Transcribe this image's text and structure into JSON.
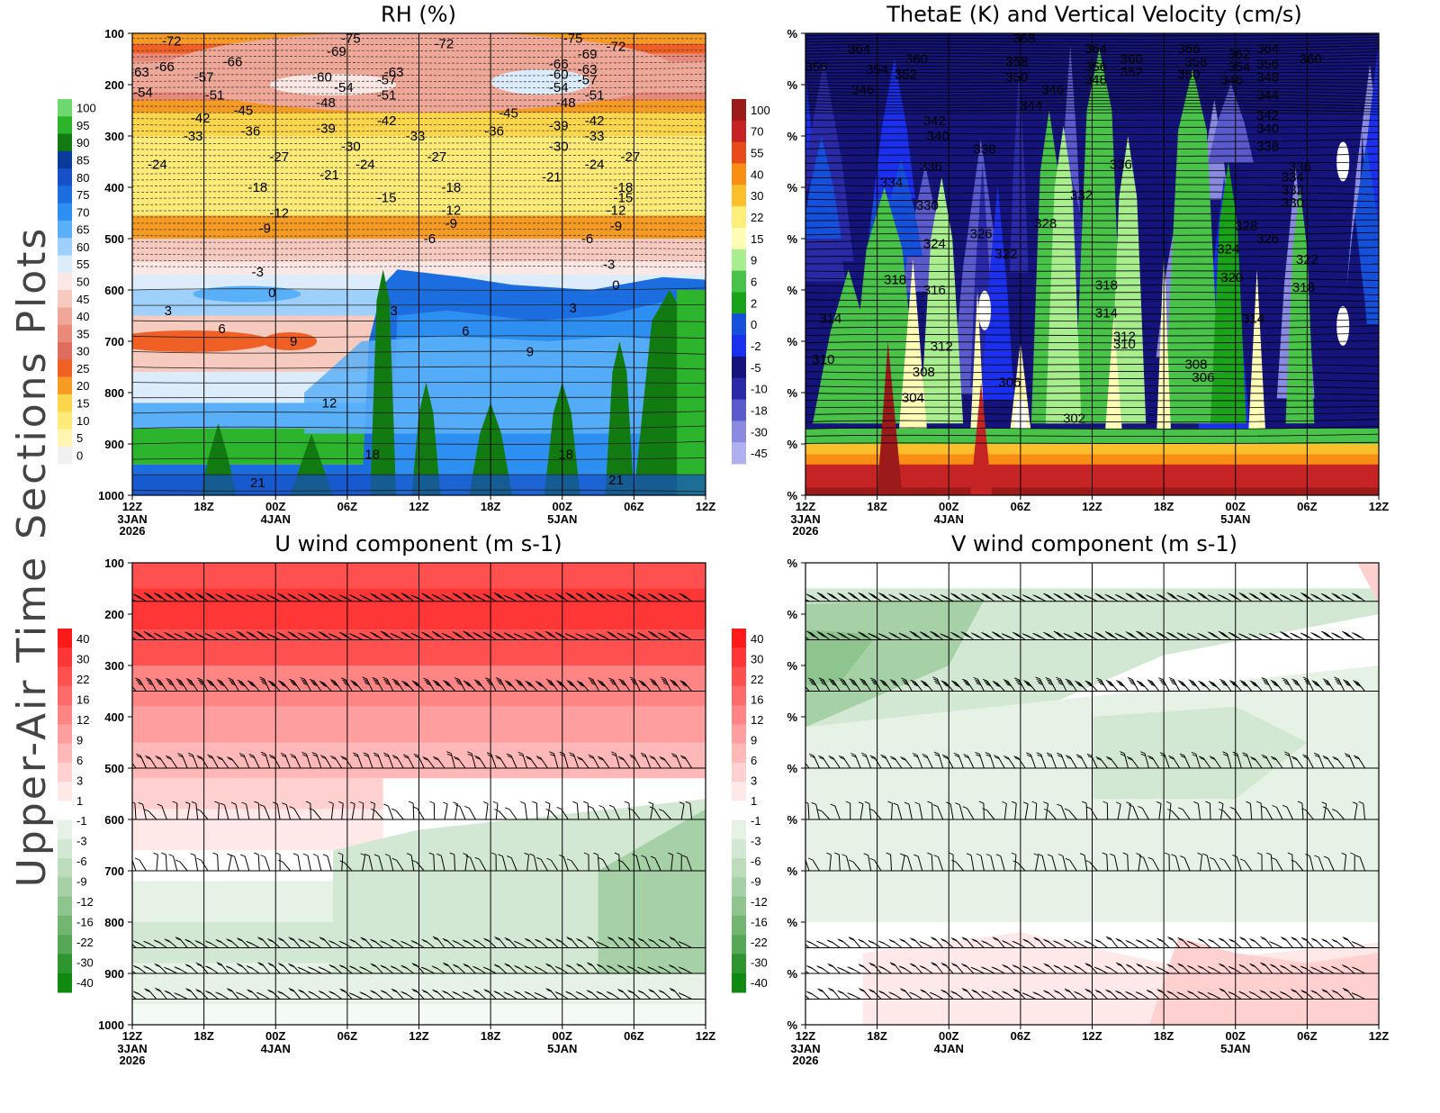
{
  "figure": {
    "side_title": "Upper-Air Time Sections Plots"
  },
  "time_axis": {
    "ticks": [
      "12Z",
      "18Z",
      "00Z",
      "06Z",
      "12Z",
      "18Z",
      "00Z",
      "06Z",
      "12Z"
    ],
    "sublabels": [
      {
        "tick": 0,
        "lines": [
          "3JAN",
          "2026"
        ]
      },
      {
        "tick": 2,
        "lines": [
          "4JAN"
        ]
      },
      {
        "tick": 6,
        "lines": [
          "5JAN"
        ]
      }
    ]
  },
  "colorbars": {
    "rh": {
      "labels": [
        "100",
        "95",
        "90",
        "85",
        "80",
        "75",
        "70",
        "65",
        "60",
        "55",
        "50",
        "45",
        "40",
        "35",
        "30",
        "25",
        "20",
        "15",
        "10",
        "5",
        "0"
      ],
      "colors": [
        "#6ed86e",
        "#2cb52c",
        "#117a11",
        "#0a3a9a",
        "#1550c8",
        "#1c6ee0",
        "#2e8ff2",
        "#5ab0f8",
        "#9ed0fb",
        "#dcecfb",
        "#fbe8e4",
        "#f6cabe",
        "#efa898",
        "#e8897a",
        "#df6d5e",
        "#f06024",
        "#f59a22",
        "#fbd54a",
        "#fdeb78",
        "#fff5b0",
        "#f0f0f0"
      ]
    },
    "w": {
      "labels": [
        "100",
        "70",
        "55",
        "40",
        "30",
        "22",
        "15",
        "9",
        "6",
        "2",
        "0",
        "-2",
        "-5",
        "-10",
        "-18",
        "-30",
        "-45"
      ],
      "colors": [
        "#9c1a1a",
        "#c62424",
        "#e84a1a",
        "#f88f14",
        "#fcbf2c",
        "#feee7a",
        "#fffcb8",
        "#a8ee8e",
        "#48c248",
        "#1aa21a",
        "#1450dc",
        "#1a30ee",
        "#14147c",
        "#2a2aa8",
        "#5a5acd",
        "#8a8ae0",
        "#b0b0f0"
      ]
    },
    "uv": {
      "labels": [
        "40",
        "30",
        "22",
        "16",
        "12",
        "9",
        "6",
        "3",
        "1",
        "-1",
        "-3",
        "-6",
        "-9",
        "-12",
        "-16",
        "-22",
        "-30",
        "-40"
      ],
      "colors": [
        "#ff1a1a",
        "#ff3636",
        "#ff5050",
        "#ff6a6a",
        "#ff8484",
        "#ff9e9e",
        "#ffb8b8",
        "#ffd0d0",
        "#ffe8e8",
        "#ffffff",
        "#e6f2e6",
        "#d2e8d2",
        "#bcdcbc",
        "#a6d0a6",
        "#8ec48e",
        "#72b672",
        "#56a856",
        "#2e962e",
        "#108a10"
      ]
    }
  },
  "chart_data": [
    {
      "type": "heatmap",
      "title": "RH (%)",
      "x_ticks": [
        "12Z",
        "18Z",
        "00Z",
        "06Z",
        "12Z",
        "18Z",
        "00Z",
        "06Z",
        "12Z"
      ],
      "y_ticks": [
        "100",
        "200",
        "300",
        "400",
        "500",
        "600",
        "700",
        "800",
        "900",
        "1000"
      ],
      "ylim": [
        1000,
        100
      ],
      "contour_labels": [
        {
          "t": 0.1,
          "p": 115,
          "v": "-72"
        },
        {
          "t": 2.6,
          "p": 110,
          "v": "-75"
        },
        {
          "t": 2.4,
          "p": 135,
          "v": "-69"
        },
        {
          "t": 3.9,
          "p": 120,
          "v": "-72"
        },
        {
          "t": 5.7,
          "p": 110,
          "v": "-75"
        },
        {
          "t": 5.9,
          "p": 140,
          "v": "-69"
        },
        {
          "t": 6.3,
          "p": 125,
          "v": "-72"
        },
        {
          "t": 0.0,
          "p": 165,
          "v": "-66"
        },
        {
          "t": 0.95,
          "p": 155,
          "v": "-66"
        },
        {
          "t": -0.35,
          "p": 175,
          "v": "-63"
        },
        {
          "t": 0.55,
          "p": 185,
          "v": "-57"
        },
        {
          "t": -0.3,
          "p": 215,
          "v": "-54"
        },
        {
          "t": 0.7,
          "p": 220,
          "v": "-51"
        },
        {
          "t": 2.2,
          "p": 185,
          "v": "-60"
        },
        {
          "t": 2.5,
          "p": 205,
          "v": "-54"
        },
        {
          "t": 2.25,
          "p": 235,
          "v": "-48"
        },
        {
          "t": 3.2,
          "p": 175,
          "v": "-63"
        },
        {
          "t": 3.1,
          "p": 190,
          "v": "-57"
        },
        {
          "t": 3.1,
          "p": 220,
          "v": "-51"
        },
        {
          "t": 5.5,
          "p": 160,
          "v": "-66"
        },
        {
          "t": 5.5,
          "p": 180,
          "v": "-60"
        },
        {
          "t": 5.5,
          "p": 205,
          "v": "-54"
        },
        {
          "t": 5.6,
          "p": 235,
          "v": "-48"
        },
        {
          "t": 5.9,
          "p": 170,
          "v": "-63"
        },
        {
          "t": 5.9,
          "p": 190,
          "v": "-57"
        },
        {
          "t": 6.0,
          "p": 220,
          "v": "-51"
        },
        {
          "t": 0.5,
          "p": 265,
          "v": "-42"
        },
        {
          "t": 1.1,
          "p": 250,
          "v": "-45"
        },
        {
          "t": 0.4,
          "p": 300,
          "v": "-33"
        },
        {
          "t": 1.2,
          "p": 290,
          "v": "-36"
        },
        {
          "t": 2.25,
          "p": 285,
          "v": "-39"
        },
        {
          "t": 3.1,
          "p": 270,
          "v": "-42"
        },
        {
          "t": 3.5,
          "p": 300,
          "v": "-33"
        },
        {
          "t": 4.8,
          "p": 255,
          "v": "-45"
        },
        {
          "t": 4.6,
          "p": 290,
          "v": "-36"
        },
        {
          "t": 5.5,
          "p": 280,
          "v": "-39"
        },
        {
          "t": 6.0,
          "p": 270,
          "v": "-42"
        },
        {
          "t": 6.0,
          "p": 300,
          "v": "-33"
        },
        {
          "t": 2.6,
          "p": 320,
          "v": "-30"
        },
        {
          "t": 5.5,
          "p": 320,
          "v": "-30"
        },
        {
          "t": -0.1,
          "p": 355,
          "v": "-24"
        },
        {
          "t": 1.6,
          "p": 340,
          "v": "-27"
        },
        {
          "t": 2.3,
          "p": 375,
          "v": "-21"
        },
        {
          "t": 2.8,
          "p": 355,
          "v": "-24"
        },
        {
          "t": 3.8,
          "p": 340,
          "v": "-27"
        },
        {
          "t": 5.4,
          "p": 380,
          "v": "-21"
        },
        {
          "t": 6.0,
          "p": 355,
          "v": "-24"
        },
        {
          "t": 6.5,
          "p": 340,
          "v": "-27"
        },
        {
          "t": 1.3,
          "p": 400,
          "v": "-18"
        },
        {
          "t": 4.0,
          "p": 400,
          "v": "-18"
        },
        {
          "t": 6.4,
          "p": 400,
          "v": "-18"
        },
        {
          "t": 3.1,
          "p": 420,
          "v": "-15"
        },
        {
          "t": 6.4,
          "p": 420,
          "v": "-15"
        },
        {
          "t": 1.6,
          "p": 450,
          "v": "-12"
        },
        {
          "t": 4.0,
          "p": 445,
          "v": "-12"
        },
        {
          "t": 6.3,
          "p": 445,
          "v": "-12"
        },
        {
          "t": 1.4,
          "p": 480,
          "v": "-9"
        },
        {
          "t": 4.0,
          "p": 470,
          "v": "-9"
        },
        {
          "t": 6.3,
          "p": 475,
          "v": "-9"
        },
        {
          "t": 3.7,
          "p": 500,
          "v": "-6"
        },
        {
          "t": 5.9,
          "p": 500,
          "v": "-6"
        },
        {
          "t": 1.3,
          "p": 565,
          "v": "-3"
        },
        {
          "t": 6.2,
          "p": 550,
          "v": "-3"
        },
        {
          "t": 1.5,
          "p": 605,
          "v": "0"
        },
        {
          "t": 6.3,
          "p": 590,
          "v": "0"
        },
        {
          "t": 0.05,
          "p": 640,
          "v": "3"
        },
        {
          "t": 3.2,
          "p": 640,
          "v": "3"
        },
        {
          "t": 5.7,
          "p": 635,
          "v": "3"
        },
        {
          "t": 0.8,
          "p": 675,
          "v": "6"
        },
        {
          "t": 4.2,
          "p": 680,
          "v": "6"
        },
        {
          "t": 1.8,
          "p": 700,
          "v": "9"
        },
        {
          "t": 5.1,
          "p": 720,
          "v": "9"
        },
        {
          "t": 2.3,
          "p": 820,
          "v": "12"
        },
        {
          "t": 2.9,
          "p": 920,
          "v": "18"
        },
        {
          "t": 5.6,
          "p": 920,
          "v": "18"
        },
        {
          "t": 1.3,
          "p": 975,
          "v": "21"
        },
        {
          "t": 6.3,
          "p": 970,
          "v": "21"
        }
      ]
    },
    {
      "type": "heatmap",
      "title": "ThetaE (K) and Vertical Velocity (cm/s)",
      "x_ticks": [
        "12Z",
        "18Z",
        "00Z",
        "06Z",
        "12Z",
        "18Z",
        "00Z",
        "06Z",
        "12Z"
      ],
      "y_ticks": [
        "%",
        "%",
        "%",
        "%",
        "%",
        "%",
        "%",
        "%",
        "%",
        "%"
      ],
      "contour_labels": [
        {
          "t": 0.3,
          "p": 130,
          "v": "364"
        },
        {
          "t": -0.3,
          "p": 165,
          "v": "356"
        },
        {
          "t": 0.55,
          "p": 170,
          "v": "354"
        },
        {
          "t": 1.1,
          "p": 150,
          "v": "360"
        },
        {
          "t": 0.95,
          "p": 180,
          "v": "352"
        },
        {
          "t": 0.35,
          "p": 210,
          "v": "346"
        },
        {
          "t": 2.6,
          "p": 110,
          "v": "368"
        },
        {
          "t": 2.5,
          "p": 155,
          "v": "358"
        },
        {
          "t": 2.5,
          "p": 185,
          "v": "350"
        },
        {
          "t": 3.0,
          "p": 210,
          "v": "346"
        },
        {
          "t": 2.7,
          "p": 240,
          "v": "344"
        },
        {
          "t": 3.6,
          "p": 130,
          "v": "364"
        },
        {
          "t": 3.6,
          "p": 165,
          "v": "356"
        },
        {
          "t": 3.6,
          "p": 190,
          "v": "348"
        },
        {
          "t": 4.1,
          "p": 150,
          "v": "360"
        },
        {
          "t": 4.1,
          "p": 175,
          "v": "352"
        },
        {
          "t": 4.9,
          "p": 130,
          "v": "366"
        },
        {
          "t": 5.0,
          "p": 155,
          "v": "358"
        },
        {
          "t": 4.9,
          "p": 180,
          "v": "350"
        },
        {
          "t": 5.6,
          "p": 140,
          "v": "362"
        },
        {
          "t": 5.6,
          "p": 165,
          "v": "354"
        },
        {
          "t": 5.5,
          "p": 190,
          "v": "346"
        },
        {
          "t": 6.0,
          "p": 130,
          "v": "364"
        },
        {
          "t": 6.0,
          "p": 160,
          "v": "356"
        },
        {
          "t": 6.0,
          "p": 185,
          "v": "348"
        },
        {
          "t": 6.6,
          "p": 150,
          "v": "360"
        },
        {
          "t": 6.0,
          "p": 220,
          "v": "344"
        },
        {
          "t": 6.0,
          "p": 260,
          "v": "342"
        },
        {
          "t": 6.0,
          "p": 285,
          "v": "340"
        },
        {
          "t": 6.0,
          "p": 320,
          "v": "338"
        },
        {
          "t": 1.35,
          "p": 270,
          "v": "342"
        },
        {
          "t": 1.4,
          "p": 300,
          "v": "340"
        },
        {
          "t": 2.05,
          "p": 325,
          "v": "338"
        },
        {
          "t": 1.3,
          "p": 360,
          "v": "336"
        },
        {
          "t": 0.75,
          "p": 390,
          "v": "334"
        },
        {
          "t": 1.25,
          "p": 435,
          "v": "330"
        },
        {
          "t": 3.95,
          "p": 355,
          "v": "336"
        },
        {
          "t": 3.4,
          "p": 415,
          "v": "332"
        },
        {
          "t": 2.9,
          "p": 470,
          "v": "328"
        },
        {
          "t": 6.45,
          "p": 360,
          "v": "336"
        },
        {
          "t": 6.35,
          "p": 380,
          "v": "334"
        },
        {
          "t": 6.35,
          "p": 405,
          "v": "332"
        },
        {
          "t": 6.35,
          "p": 430,
          "v": "330"
        },
        {
          "t": 5.7,
          "p": 475,
          "v": "328"
        },
        {
          "t": 6.0,
          "p": 500,
          "v": "326"
        },
        {
          "t": 1.35,
          "p": 510,
          "v": "324"
        },
        {
          "t": 2.0,
          "p": 490,
          "v": "326"
        },
        {
          "t": 2.35,
          "p": 530,
          "v": "322"
        },
        {
          "t": 5.45,
          "p": 520,
          "v": "324"
        },
        {
          "t": 6.55,
          "p": 540,
          "v": "322"
        },
        {
          "t": 0.8,
          "p": 580,
          "v": "318"
        },
        {
          "t": 1.35,
          "p": 600,
          "v": "316"
        },
        {
          "t": 3.75,
          "p": 590,
          "v": "318"
        },
        {
          "t": 5.5,
          "p": 575,
          "v": "320"
        },
        {
          "t": 6.5,
          "p": 595,
          "v": "318"
        },
        {
          "t": -0.1,
          "p": 655,
          "v": "314"
        },
        {
          "t": 3.75,
          "p": 645,
          "v": "314"
        },
        {
          "t": 5.8,
          "p": 655,
          "v": "314"
        },
        {
          "t": 4.0,
          "p": 690,
          "v": "312"
        },
        {
          "t": 1.45,
          "p": 710,
          "v": "312"
        },
        {
          "t": 4.0,
          "p": 705,
          "v": "310"
        },
        {
          "t": -0.2,
          "p": 735,
          "v": "310"
        },
        {
          "t": 1.2,
          "p": 760,
          "v": "308"
        },
        {
          "t": 5.0,
          "p": 745,
          "v": "308"
        },
        {
          "t": 5.1,
          "p": 770,
          "v": "306"
        },
        {
          "t": 2.4,
          "p": 780,
          "v": "306"
        },
        {
          "t": 1.05,
          "p": 810,
          "v": "304"
        },
        {
          "t": 3.3,
          "p": 850,
          "v": "302"
        }
      ]
    },
    {
      "type": "heatmap",
      "title": "U wind component (m s-1)",
      "x_ticks": [
        "12Z",
        "18Z",
        "00Z",
        "06Z",
        "12Z",
        "18Z",
        "00Z",
        "06Z",
        "12Z"
      ],
      "y_ticks": [
        "100",
        "200",
        "300",
        "400",
        "500",
        "600",
        "700",
        "800",
        "900",
        "1000"
      ],
      "ylim": [
        1000,
        100
      ],
      "barb_levels": [
        175,
        250,
        350,
        500,
        600,
        700,
        850,
        900,
        950
      ]
    },
    {
      "type": "heatmap",
      "title": "V wind component (m s-1)",
      "x_ticks": [
        "12Z",
        "18Z",
        "00Z",
        "06Z",
        "12Z",
        "18Z",
        "00Z",
        "06Z",
        "12Z"
      ],
      "y_ticks": [
        "%",
        "%",
        "%",
        "%",
        "%",
        "%",
        "%",
        "%",
        "%",
        "%"
      ],
      "barb_levels": [
        175,
        250,
        350,
        500,
        600,
        700,
        850,
        900,
        950
      ]
    }
  ]
}
